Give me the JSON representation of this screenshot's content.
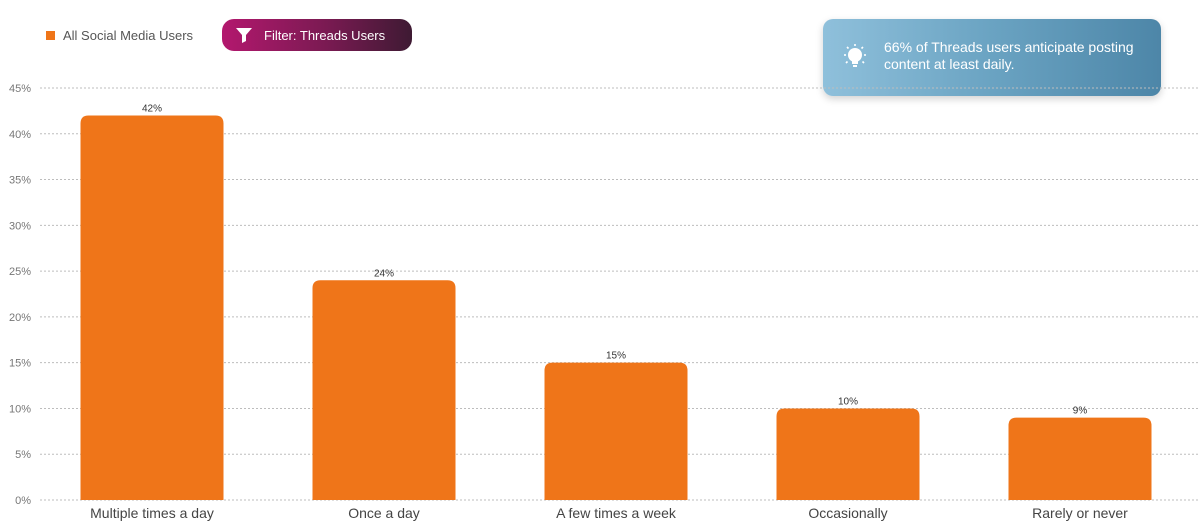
{
  "legend": {
    "label": "All Social Media Users",
    "color": "#ef7519"
  },
  "filter": {
    "label": "Filter: Threads Users"
  },
  "insight": {
    "text": "66% of Threads users anticipate posting content at least daily."
  },
  "colors": {
    "bar": "#ef7519",
    "grid": "#bdbdbd",
    "filter_start": "#b3186e",
    "filter_end": "#3e1a33",
    "insight_start": "#8fc0db",
    "insight_end": "#4d86a8"
  },
  "icons": {
    "filter": "funnel-icon",
    "insight": "lightbulb-icon"
  },
  "chart_data": {
    "type": "bar",
    "categories": [
      "Multiple times a day",
      "Once a day",
      "A few times a week",
      "Occasionally",
      "Rarely or never"
    ],
    "series": [
      {
        "name": "All Social Media Users",
        "values": [
          42,
          24,
          15,
          10,
          9
        ],
        "labels": [
          "42%",
          "24%",
          "15%",
          "10%",
          "9%"
        ]
      }
    ],
    "yticks": [
      "0%",
      "5%",
      "10%",
      "15%",
      "20%",
      "25%",
      "30%",
      "35%",
      "40%",
      "45%"
    ],
    "ylim": [
      0,
      45
    ],
    "grid": true,
    "legend_position": "top-left",
    "title": "",
    "xlabel": "",
    "ylabel": ""
  }
}
